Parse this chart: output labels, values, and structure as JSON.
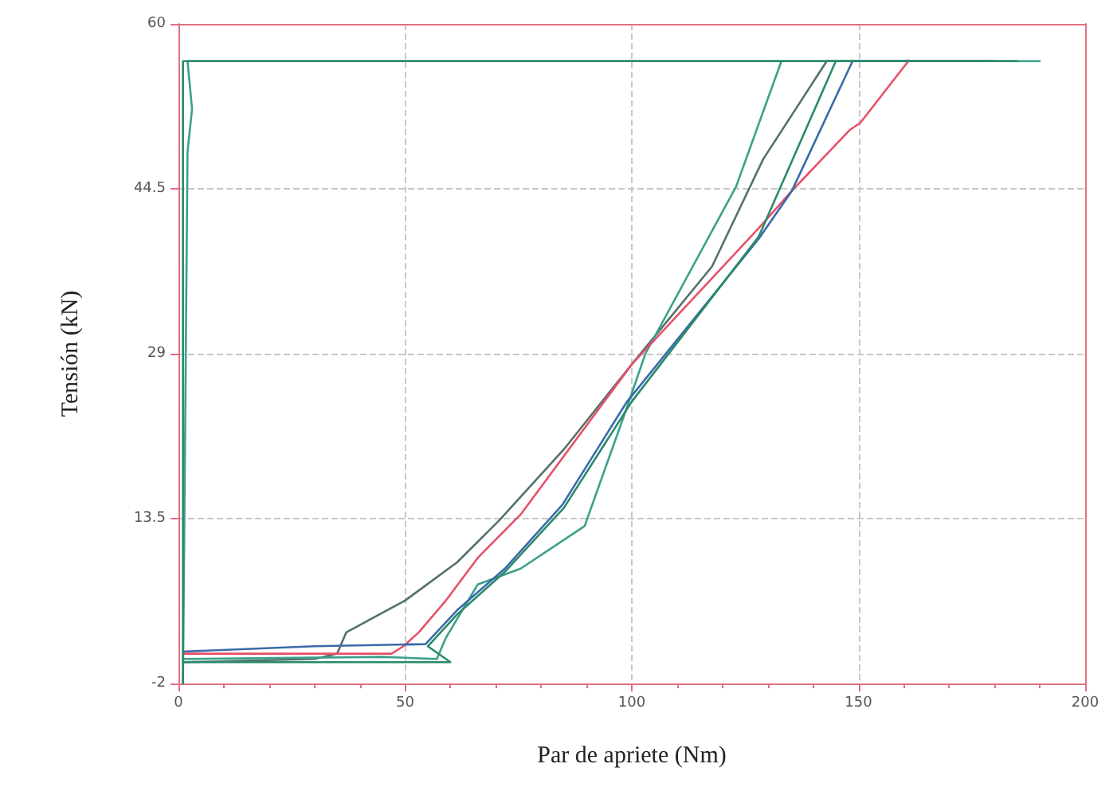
{
  "chart_data": {
    "type": "line",
    "xlabel": "Par de apriete (Nm)",
    "ylabel": "Tensión (kN)",
    "xlim": [
      0,
      200
    ],
    "xticks": [
      0,
      50,
      100,
      150,
      200
    ],
    "ylim": [
      -2,
      60
    ],
    "yticks": [
      -2,
      13.5,
      29,
      44.5,
      60
    ],
    "grid": true,
    "marker": "none",
    "line_style": "solid",
    "series": [
      {
        "color": "#55706a",
        "x": [
          1,
          30,
          35,
          37,
          50,
          61.5,
          70.7,
          85,
          100,
          117.7,
          129,
          143,
          180
        ],
        "values": [
          0,
          0.3,
          0.8,
          2.8,
          5.8,
          9.4,
          13.3,
          20,
          28,
          37.2,
          47.3,
          56.5,
          56.5
        ]
      },
      {
        "color": "#3aa08a",
        "x": [
          1,
          45,
          57,
          59,
          66,
          75.5,
          89.6,
          98.8,
          103,
          123,
          133,
          190,
          2,
          3,
          2,
          1
        ],
        "values": [
          0.3,
          0.5,
          0.3,
          2.3,
          7.3,
          8.8,
          12.8,
          23.8,
          29,
          44.7,
          56.5,
          56.5,
          56.5,
          52,
          48,
          -2
        ]
      },
      {
        "color": "#e8506a",
        "x": [
          1,
          47,
          49.6,
          53,
          59,
          66,
          75.5,
          100,
          128,
          135.3,
          148,
          150.4,
          161
        ],
        "values": [
          0.8,
          0.8,
          1.5,
          2.8,
          5.8,
          9.8,
          13.9,
          28,
          40.8,
          44.3,
          50,
          50.7,
          56.5
        ]
      },
      {
        "color": "#3a6aaa",
        "x": [
          1,
          30,
          54.5,
          61.5,
          72,
          84.7,
          98.8,
          128,
          135.3,
          148.7,
          178
        ],
        "values": [
          1,
          1.5,
          1.7,
          4.9,
          8.8,
          14.8,
          24.4,
          39.8,
          44.3,
          56.5,
          56.5
        ]
      },
      {
        "color": "#2a8a6a",
        "x": [
          1,
          40,
          60,
          55,
          61.5,
          72,
          85,
          100,
          128,
          145,
          185,
          1,
          1
        ],
        "values": [
          0,
          0,
          0,
          1.5,
          4.5,
          8.5,
          14.5,
          24.5,
          40,
          56.5,
          56.5,
          56.5,
          -2
        ]
      }
    ]
  }
}
